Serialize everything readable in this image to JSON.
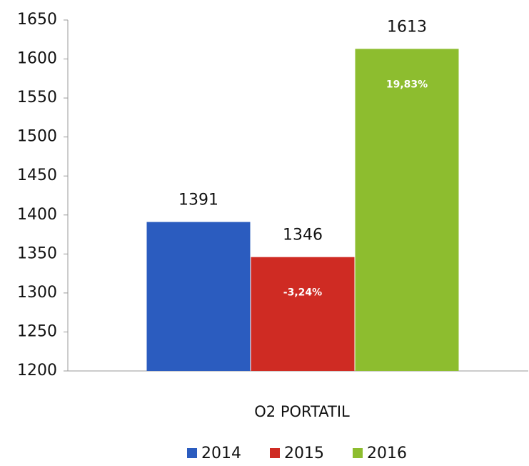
{
  "chart_data": {
    "type": "bar",
    "categories": [
      "O2 PORTATIL"
    ],
    "series": [
      {
        "name": "2014",
        "color": "#2b5cbf",
        "values": [
          1391
        ]
      },
      {
        "name": "2015",
        "color": "#cf2b23",
        "values": [
          1346
        ]
      },
      {
        "name": "2016",
        "color": "#8dbd2f",
        "values": [
          1613
        ]
      }
    ],
    "annotations": [
      {
        "series": "2015",
        "text": "-3,24%"
      },
      {
        "series": "2016",
        "text": "19,83%"
      }
    ],
    "ylim": [
      1200,
      1650
    ],
    "yticks": [
      1200,
      1250,
      1300,
      1350,
      1400,
      1450,
      1500,
      1550,
      1600,
      1650
    ],
    "legend": "bottom",
    "grid": false
  }
}
